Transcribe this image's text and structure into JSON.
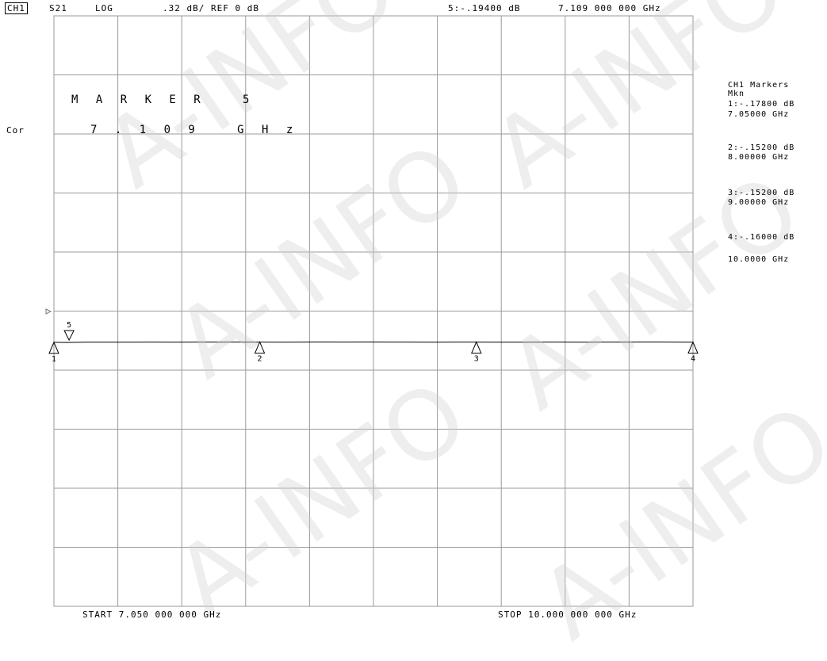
{
  "header": {
    "channel": "CH1",
    "param": "S21",
    "format": "LOG",
    "scale": ".32 dB/ REF 0 dB",
    "active_marker": "5:-.19400 dB",
    "active_freq": "7.109 000 000 GHz"
  },
  "left_labels": {
    "cor": "Cor"
  },
  "marker_box": {
    "title": "M A R K E R   5",
    "value": "7 . 1 0 9   G H z"
  },
  "marker_list": {
    "title": "CH1 Markers",
    "subtitle": "Mkn",
    "items": [
      {
        "value": "1:-.17800 dB",
        "freq": "7.05000 GHz"
      },
      {
        "value": "2:-.15200 dB",
        "freq": "8.00000 GHz"
      },
      {
        "value": "3:-.15200 dB",
        "freq": "9.00000 GHz"
      },
      {
        "value": "4:-.16000 dB",
        "freq": "10.0000 GHz"
      }
    ]
  },
  "footer": {
    "start": "START 7.050 000 000 GHz",
    "stop": "STOP 10.000 000 000 GHz"
  },
  "watermark": "A-INFO",
  "chart_data": {
    "type": "line",
    "x_unit": "GHz",
    "xlim": [
      7.05,
      10.0
    ],
    "ylim": [
      -3.2,
      0.0
    ],
    "reference_level": 0,
    "grid": true,
    "series": [
      {
        "x": [
          7.05,
          7.109,
          7.2,
          7.3,
          7.4,
          7.5,
          7.6,
          7.7,
          7.8,
          7.9,
          8.0,
          8.1,
          8.2,
          8.3,
          8.4,
          8.5,
          8.6,
          8.7,
          8.8,
          8.9,
          9.0,
          9.1,
          9.2,
          9.3,
          9.4,
          9.5,
          9.6,
          9.7,
          9.8,
          9.9,
          10.0
        ],
        "y": [
          -0.178,
          -0.194,
          -0.17,
          -0.165,
          -0.16,
          -0.155,
          -0.16,
          -0.15,
          -0.155,
          -0.152,
          -0.152,
          -0.16,
          -0.15,
          -0.148,
          -0.155,
          -0.145,
          -0.155,
          -0.15,
          -0.16,
          -0.15,
          -0.152,
          -0.16,
          -0.17,
          -0.155,
          -0.15,
          -0.16,
          -0.15,
          -0.155,
          -0.145,
          -0.15,
          -0.16
        ]
      }
    ],
    "markers": [
      {
        "id": "1",
        "x": 7.05,
        "y": -0.178
      },
      {
        "id": "2",
        "x": 8.0,
        "y": -0.152
      },
      {
        "id": "3",
        "x": 9.0,
        "y": -0.152
      },
      {
        "id": "4",
        "x": 10.0,
        "y": -0.16
      },
      {
        "id": "5",
        "x": 7.109,
        "y": -0.194,
        "active": true
      }
    ]
  }
}
